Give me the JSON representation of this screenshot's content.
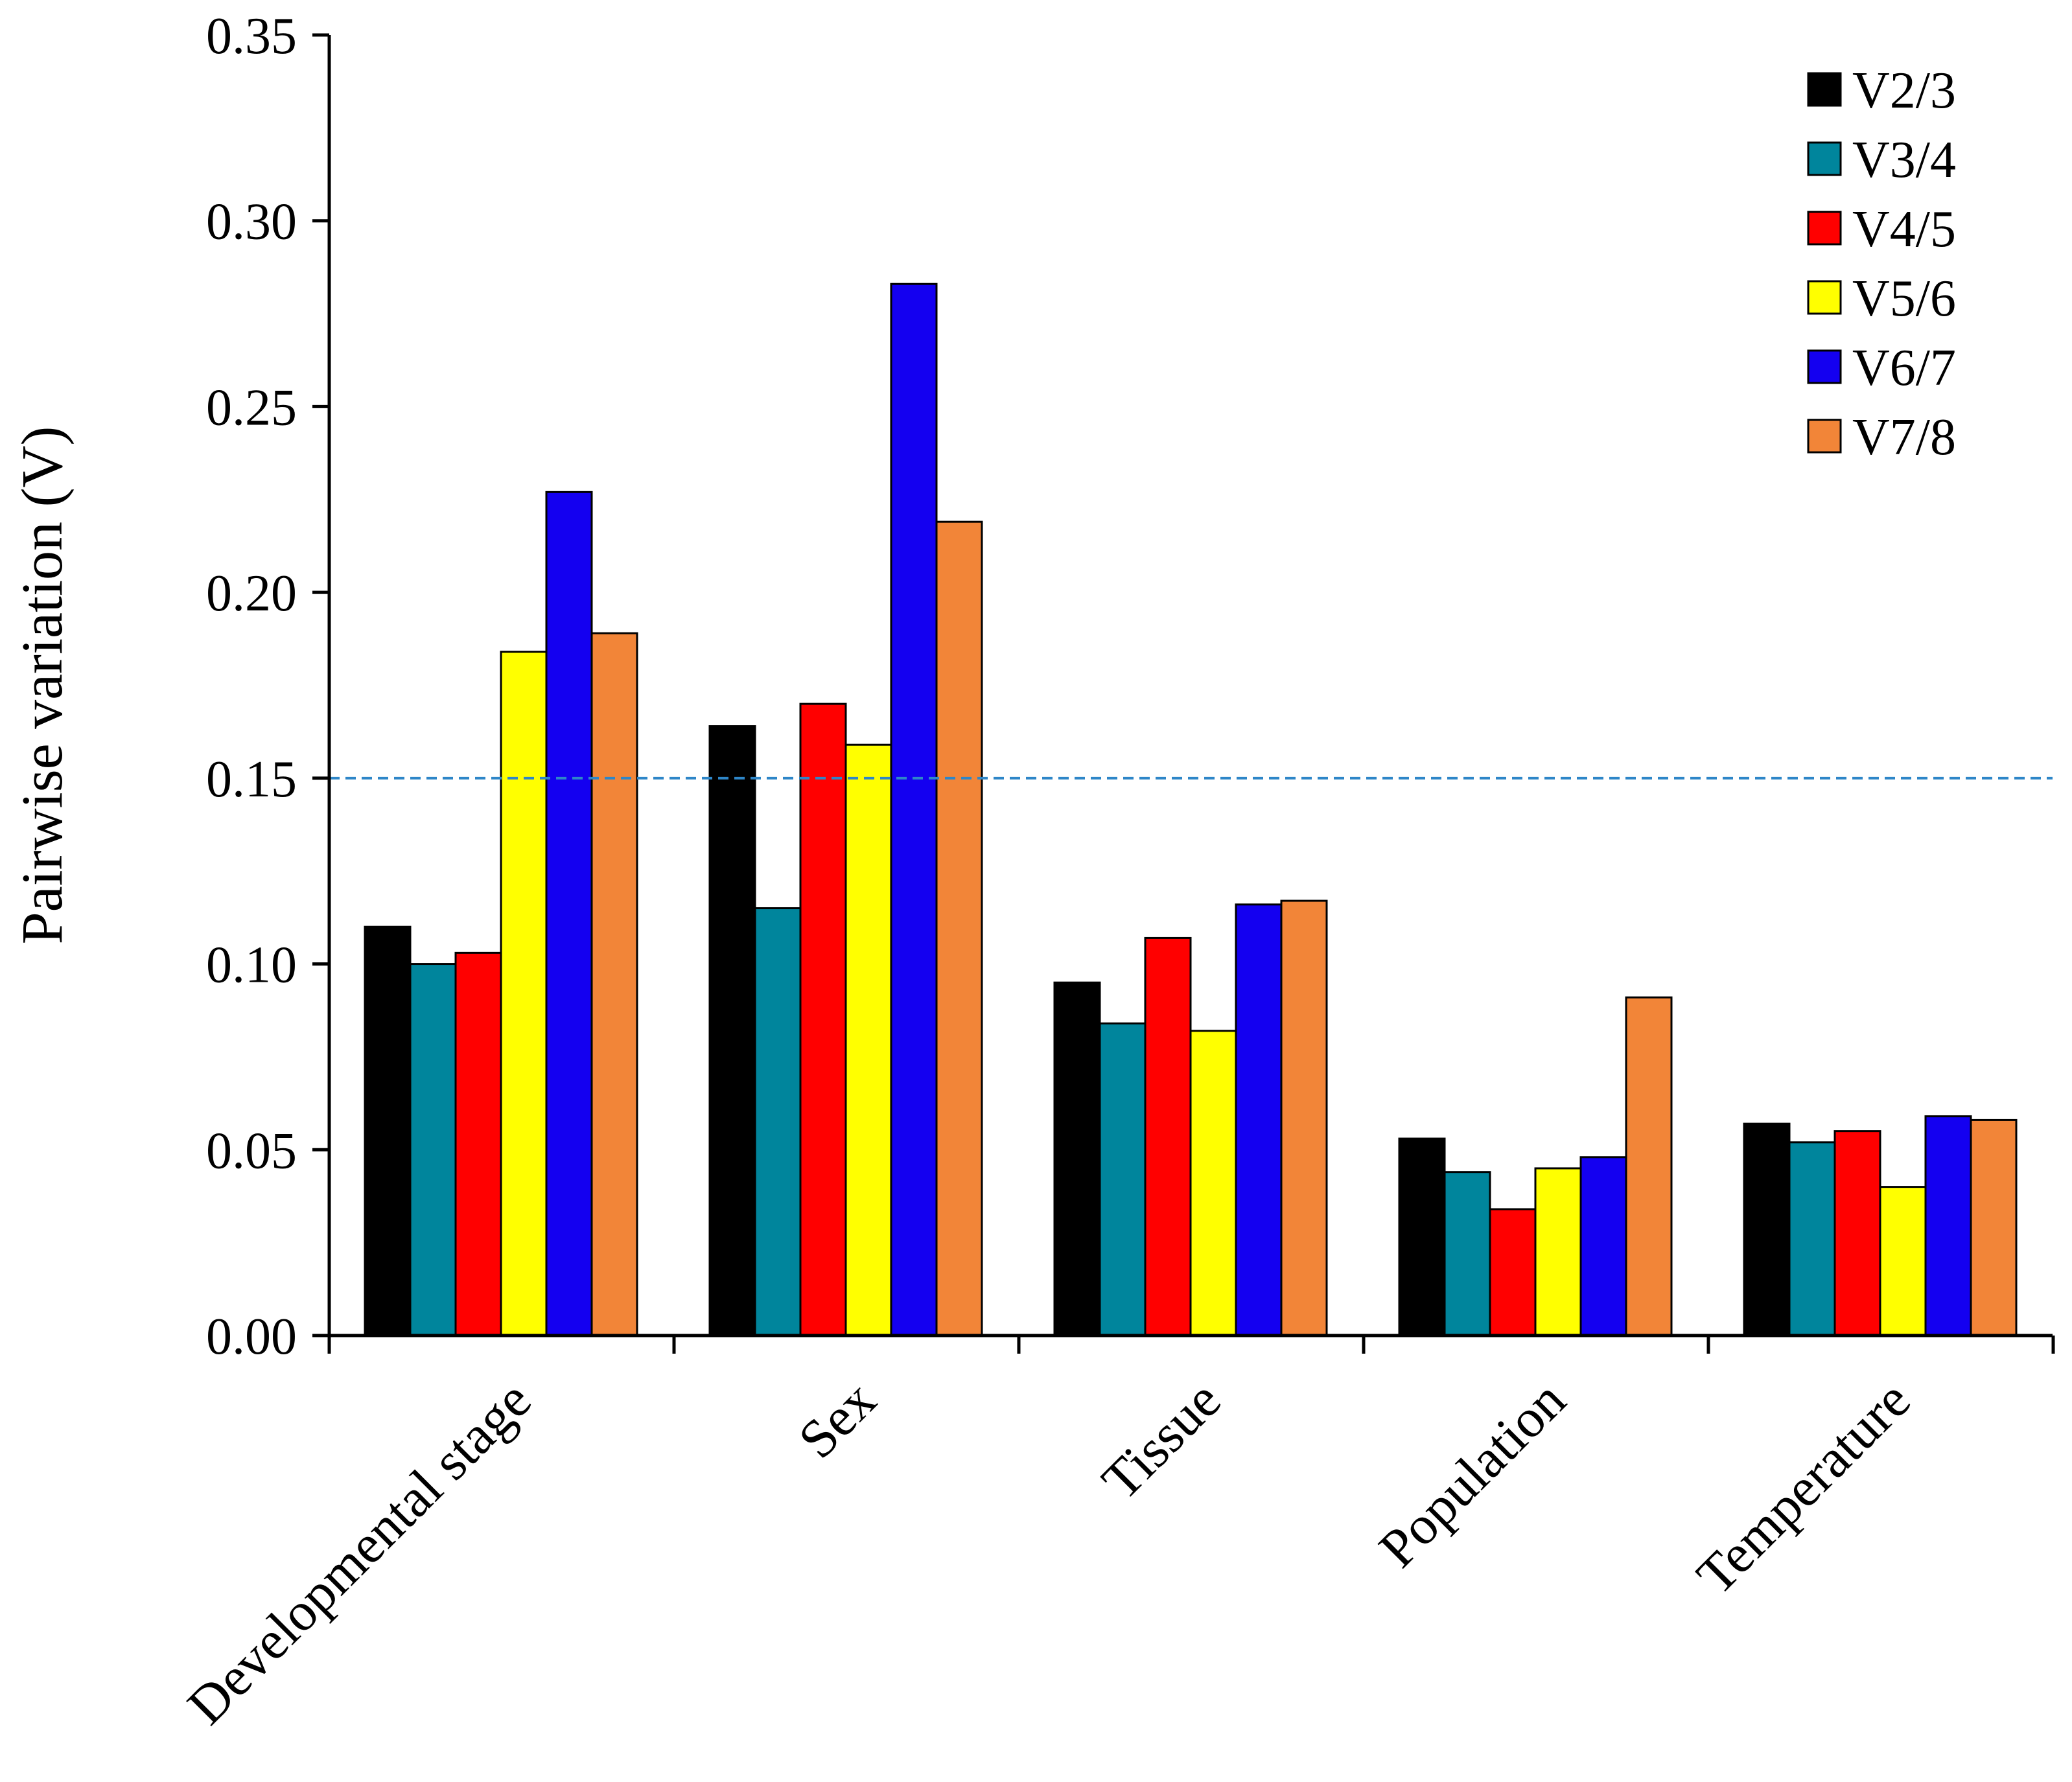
{
  "chart_data": {
    "type": "bar",
    "title": "",
    "xlabel": "",
    "ylabel": "Pairwise variation (V)",
    "ylim": [
      0,
      0.35
    ],
    "yticks": [
      "0.00",
      "0.05",
      "0.10",
      "0.15",
      "0.20",
      "0.25",
      "0.30",
      "0.35"
    ],
    "ytick_values": [
      0,
      0.05,
      0.1,
      0.15,
      0.2,
      0.25,
      0.3,
      0.35
    ],
    "grid": false,
    "legend_position": "top-right",
    "threshold": {
      "value": 0.15,
      "style": "dashed",
      "color": "#2E86C8"
    },
    "categories": [
      "Developmental stage",
      "Sex",
      "Tissue",
      "Population",
      "Temperature"
    ],
    "series": [
      {
        "name": "V2/3",
        "color": "#000000",
        "values": [
          0.11,
          0.164,
          0.095,
          0.053,
          0.057
        ]
      },
      {
        "name": "V3/4",
        "color": "#00859C",
        "values": [
          0.1,
          0.115,
          0.084,
          0.044,
          0.052
        ]
      },
      {
        "name": "V4/5",
        "color": "#FF0000",
        "values": [
          0.103,
          0.17,
          0.107,
          0.034,
          0.055
        ]
      },
      {
        "name": "V5/6",
        "color": "#FFFF00",
        "values": [
          0.184,
          0.159,
          0.082,
          0.045,
          0.04
        ]
      },
      {
        "name": "V6/7",
        "color": "#1400F0",
        "values": [
          0.227,
          0.283,
          0.116,
          0.048,
          0.059
        ]
      },
      {
        "name": "V7/8",
        "color": "#F28538",
        "values": [
          0.189,
          0.219,
          0.117,
          0.091,
          0.058
        ]
      }
    ]
  }
}
